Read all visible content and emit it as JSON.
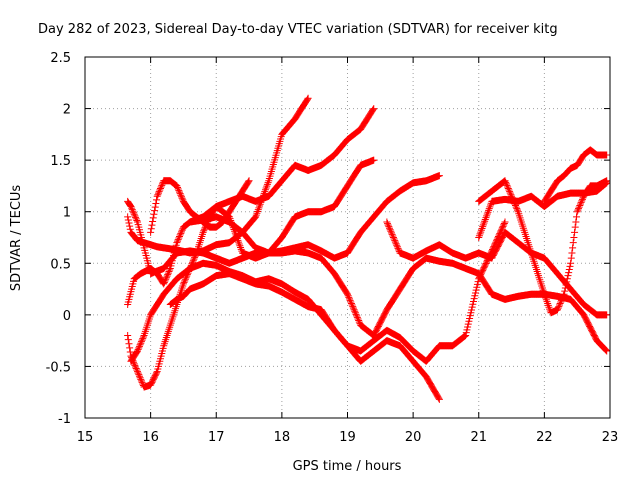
{
  "chart_data": {
    "type": "scatter",
    "title": "Day 282 of 2023, Sidereal Day-to-day VTEC variation (SDTVAR) for receiver kitg",
    "xlabel": "GPS time / hours",
    "ylabel": "SDTVAR / TECUs",
    "xlim": [
      15,
      23
    ],
    "ylim": [
      -1,
      2.5
    ],
    "xticks": [
      "15",
      "16",
      "17",
      "18",
      "19",
      "20",
      "21",
      "22",
      "23"
    ],
    "yticks": [
      "-1",
      "-0.5",
      "0",
      "0.5",
      "1",
      "1.5",
      "2",
      "2.5"
    ],
    "grid": true,
    "legend": "none",
    "marker": "+",
    "marker_color": "#ff0000",
    "series": [
      {
        "x": [
          16.0,
          16.1,
          16.2,
          16.3,
          16.4,
          16.5,
          16.6,
          16.7,
          16.8,
          16.9,
          17.0,
          17.1,
          17.2,
          17.3,
          17.4,
          17.5
        ],
        "y": [
          0.8,
          1.15,
          1.3,
          1.3,
          1.25,
          1.1,
          1.0,
          0.95,
          0.9,
          0.85,
          0.85,
          0.9,
          1.0,
          1.1,
          1.2,
          1.3
        ]
      },
      {
        "x": [
          15.65,
          15.7,
          15.8,
          15.9,
          16.0,
          16.1,
          16.2,
          16.4,
          16.6,
          16.8,
          17.0,
          17.2,
          17.4,
          17.6,
          17.8,
          18.0,
          18.2,
          18.4
        ],
        "y": [
          0.95,
          0.8,
          0.72,
          0.7,
          0.68,
          0.66,
          0.65,
          0.63,
          0.6,
          0.62,
          0.68,
          0.7,
          0.8,
          0.95,
          1.3,
          1.75,
          1.9,
          2.1
        ]
      },
      {
        "x": [
          15.65,
          15.7,
          15.8,
          15.9,
          16.0,
          16.1,
          16.2,
          16.3,
          16.4,
          16.5,
          16.6,
          16.7,
          16.8,
          16.9,
          17.0,
          17.2,
          17.4,
          17.6,
          17.8,
          18.0,
          18.2,
          18.4,
          18.6,
          18.8,
          19.0,
          19.2,
          19.4
        ],
        "y": [
          -0.2,
          -0.4,
          -0.55,
          -0.7,
          -0.68,
          -0.55,
          -0.3,
          -0.1,
          0.1,
          0.3,
          0.45,
          0.6,
          0.8,
          0.95,
          1.05,
          1.1,
          1.15,
          1.1,
          1.15,
          1.3,
          1.45,
          1.4,
          1.45,
          1.55,
          1.7,
          1.8,
          2.0
        ]
      },
      {
        "x": [
          15.65,
          15.75,
          15.85,
          16.0,
          16.1,
          16.2,
          16.3,
          16.4,
          16.5,
          16.6,
          16.8,
          17.0,
          17.2,
          17.4,
          17.6,
          17.8,
          18.0,
          18.2,
          18.4,
          18.6,
          18.8,
          19.0,
          19.2,
          19.4
        ],
        "y": [
          0.1,
          0.35,
          0.4,
          0.45,
          0.4,
          0.3,
          0.45,
          0.7,
          0.85,
          0.9,
          0.92,
          0.95,
          0.9,
          0.8,
          0.65,
          0.6,
          0.75,
          0.95,
          1.0,
          1.0,
          1.05,
          1.25,
          1.45,
          1.5
        ]
      },
      {
        "x": [
          15.65,
          15.7,
          15.8,
          15.9,
          16.0,
          16.2,
          16.4,
          16.6,
          16.8,
          17.0,
          17.2,
          17.4,
          17.6,
          17.8,
          18.0,
          18.2,
          18.4,
          18.6,
          18.8,
          19.0,
          19.2,
          19.4,
          19.6,
          19.8,
          20.0,
          20.2,
          20.4
        ],
        "y": [
          1.1,
          1.05,
          0.9,
          0.65,
          0.4,
          0.45,
          0.6,
          0.62,
          0.6,
          0.55,
          0.5,
          0.55,
          0.6,
          0.6,
          0.62,
          0.65,
          0.68,
          0.62,
          0.55,
          0.6,
          0.8,
          0.95,
          1.1,
          1.2,
          1.28,
          1.3,
          1.35
        ]
      },
      {
        "x": [
          15.7,
          15.8,
          15.9,
          16.0,
          16.2,
          16.4,
          16.6,
          16.8,
          17.0,
          17.2,
          17.4,
          17.6,
          17.8,
          18.0,
          18.2,
          18.4,
          18.6,
          18.8,
          19.0,
          19.2,
          19.4,
          19.6,
          19.8,
          20.0,
          20.2,
          20.4
        ],
        "y": [
          -0.45,
          -0.35,
          -0.2,
          0.0,
          0.2,
          0.35,
          0.45,
          0.5,
          0.48,
          0.42,
          0.38,
          0.32,
          0.35,
          0.3,
          0.22,
          0.15,
          0.0,
          -0.15,
          -0.3,
          -0.45,
          -0.35,
          -0.25,
          -0.3,
          -0.45,
          -0.6,
          -0.82
        ]
      },
      {
        "x": [
          16.3,
          16.4,
          16.5,
          16.6,
          16.8,
          17.0,
          17.2,
          17.4,
          17.6,
          17.8,
          18.0,
          18.2,
          18.4,
          18.6,
          18.8,
          19.0,
          19.2,
          19.4,
          19.6,
          19.8,
          20.0,
          20.2,
          20.4,
          20.6,
          20.8,
          21.0,
          21.2,
          21.4
        ],
        "y": [
          0.1,
          0.15,
          0.18,
          0.25,
          0.3,
          0.38,
          0.4,
          0.35,
          0.3,
          0.28,
          0.22,
          0.15,
          0.08,
          0.05,
          -0.15,
          -0.3,
          -0.35,
          -0.25,
          -0.15,
          -0.22,
          -0.35,
          -0.45,
          -0.3,
          -0.3,
          -0.2,
          0.35,
          0.62,
          0.9
        ]
      },
      {
        "x": [
          16.6,
          16.8,
          17.0,
          17.2,
          17.4,
          17.6,
          17.8,
          18.0,
          18.2,
          18.4,
          18.6,
          18.8,
          19.0,
          19.2,
          19.4,
          19.6,
          19.8,
          20.0,
          20.2,
          20.4,
          20.6,
          20.8,
          21.0,
          21.2,
          21.4,
          21.6,
          21.8,
          22.0,
          22.2,
          22.4,
          22.6,
          22.8,
          22.95
        ],
        "y": [
          0.9,
          0.95,
          1.05,
          0.95,
          0.6,
          0.55,
          0.6,
          0.6,
          0.62,
          0.6,
          0.55,
          0.4,
          0.2,
          -0.1,
          -0.2,
          0.05,
          0.25,
          0.45,
          0.55,
          0.52,
          0.5,
          0.45,
          0.4,
          0.2,
          0.15,
          0.18,
          0.2,
          0.2,
          0.18,
          0.15,
          0.0,
          -0.25,
          -0.35
        ]
      },
      {
        "x": [
          19.6,
          19.8,
          20.0,
          20.2,
          20.4,
          20.6,
          20.8,
          21.0,
          21.2,
          21.4,
          21.6,
          21.8,
          22.0,
          22.2,
          22.4,
          22.6,
          22.8,
          22.95
        ],
        "y": [
          0.9,
          0.6,
          0.55,
          0.62,
          0.68,
          0.6,
          0.55,
          0.6,
          0.55,
          0.8,
          0.7,
          0.6,
          0.55,
          0.4,
          0.25,
          0.1,
          0.0,
          0.0
        ]
      },
      {
        "x": [
          21.0,
          21.2,
          21.4,
          21.6,
          21.8,
          22.0,
          22.2,
          22.4,
          22.6,
          22.8,
          22.95
        ],
        "y": [
          0.75,
          1.1,
          1.12,
          1.1,
          1.15,
          1.05,
          1.15,
          1.18,
          1.18,
          1.2,
          1.28
        ]
      },
      {
        "x": [
          21.0,
          21.2,
          21.4,
          21.6,
          21.8,
          22.0,
          22.1,
          22.2,
          22.3,
          22.4,
          22.5,
          22.6,
          22.7,
          22.8,
          22.95
        ],
        "y": [
          1.1,
          1.2,
          1.3,
          1.0,
          0.6,
          0.2,
          0.02,
          0.05,
          0.2,
          0.5,
          1.0,
          1.15,
          1.25,
          1.25,
          1.3
        ]
      },
      {
        "x": [
          22.0,
          22.1,
          22.2,
          22.3,
          22.4,
          22.5,
          22.6,
          22.7,
          22.8,
          22.95
        ],
        "y": [
          1.1,
          1.2,
          1.3,
          1.35,
          1.42,
          1.45,
          1.55,
          1.6,
          1.55,
          1.55
        ]
      }
    ]
  }
}
